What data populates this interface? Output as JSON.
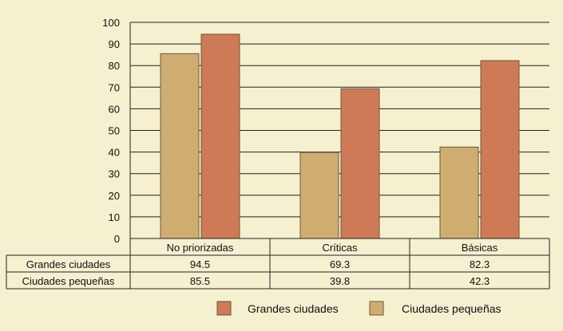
{
  "chart_data": {
    "type": "bar",
    "categories": [
      "No priorizadas",
      "Críticas",
      "Básicas"
    ],
    "series": [
      {
        "name": "Ciudades pequeñas",
        "values": [
          85.5,
          39.8,
          42.3
        ],
        "color": "#cfad70"
      },
      {
        "name": "Grandes ciudades",
        "values": [
          94.5,
          69.3,
          82.3
        ],
        "color": "#cf7a57"
      }
    ],
    "table_rows": [
      {
        "label": "Grandes ciudades",
        "values": [
          "94.5",
          "69.3",
          "82.3"
        ]
      },
      {
        "label": "Ciudades pequeñas",
        "values": [
          "85.5",
          "39.8",
          "42.3"
        ]
      }
    ],
    "y_ticks": [
      "0",
      "10",
      "20",
      "30",
      "40",
      "50",
      "60",
      "70",
      "80",
      "90",
      "100"
    ],
    "ylim": [
      0,
      100
    ],
    "grid": true,
    "legend": [
      {
        "label": "Grandes ciudades",
        "color": "#cf7a57"
      },
      {
        "label": "Ciudades pequeñas",
        "color": "#cfad70"
      }
    ],
    "legend_position": "bottom"
  }
}
